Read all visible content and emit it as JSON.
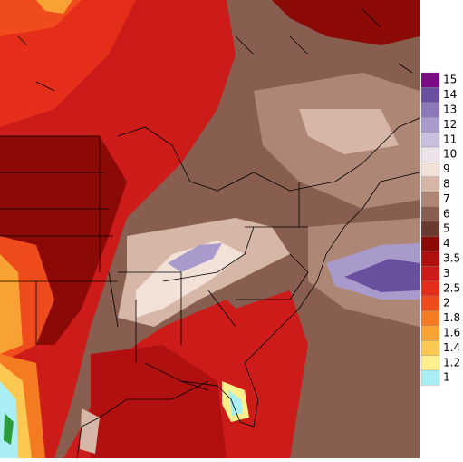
{
  "colorbar": {
    "items": [
      {
        "label": "15",
        "color": "#7b0c86"
      },
      {
        "label": "14",
        "color": "#6a4f9e"
      },
      {
        "label": "13",
        "color": "#8a78b8"
      },
      {
        "label": "12",
        "color": "#a89bcb"
      },
      {
        "label": "11",
        "color": "#c9c0dd"
      },
      {
        "label": "10",
        "color": "#ece2ea"
      },
      {
        "label": "9",
        "color": "#f2e1d6"
      },
      {
        "label": "8",
        "color": "#d6b6a6"
      },
      {
        "label": "7",
        "color": "#ae8676"
      },
      {
        "label": "6",
        "color": "#885e50"
      },
      {
        "label": "5",
        "color": "#6a392f"
      },
      {
        "label": "4",
        "color": "#8c0a06"
      },
      {
        "label": "3.5",
        "color": "#b11010"
      },
      {
        "label": "3",
        "color": "#cc1b18"
      },
      {
        "label": "2.5",
        "color": "#e42e1a"
      },
      {
        "label": "2",
        "color": "#f04b1c"
      },
      {
        "label": "1.8",
        "color": "#f57b22"
      },
      {
        "label": "1.6",
        "color": "#f8a233"
      },
      {
        "label": "1.4",
        "color": "#fbc952"
      },
      {
        "label": "1.2",
        "color": "#fdf08c"
      },
      {
        "label": "1",
        "color": "#a8eef2"
      }
    ]
  }
}
